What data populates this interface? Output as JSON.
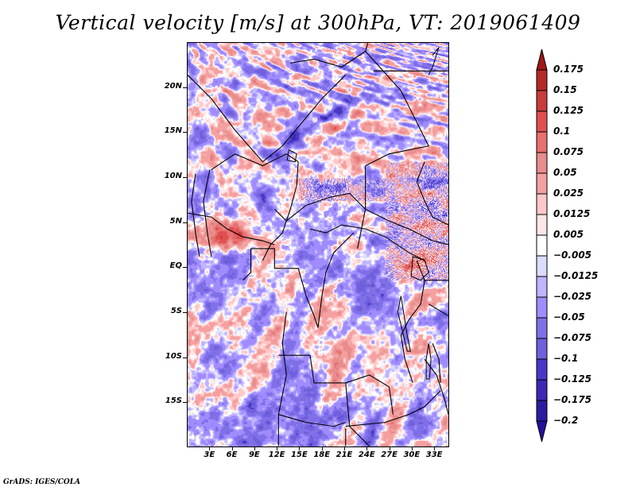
{
  "title": "Vertical velocity [m/s] at 300hPa, VT: 2019061409",
  "credit": "GrADS: IGES/COLA",
  "map": {
    "variable": "Vertical velocity",
    "units": "m/s",
    "level": "300hPa",
    "valid_time": "2019061409",
    "lon_range": [
      0,
      35
    ],
    "lat_range": [
      -20,
      25
    ],
    "y_ticks": [
      {
        "label": "20N",
        "lat": 20
      },
      {
        "label": "15N",
        "lat": 15
      },
      {
        "label": "10N",
        "lat": 10
      },
      {
        "label": "5N",
        "lat": 5
      },
      {
        "label": "EQ",
        "lat": 0
      },
      {
        "label": "5S",
        "lat": -5
      },
      {
        "label": "10S",
        "lat": -10
      },
      {
        "label": "15S",
        "lat": -15
      }
    ],
    "x_ticks": [
      {
        "label": "3E",
        "lon": 3
      },
      {
        "label": "6E",
        "lon": 6
      },
      {
        "label": "9E",
        "lon": 9
      },
      {
        "label": "12E",
        "lon": 12
      },
      {
        "label": "15E",
        "lon": 15
      },
      {
        "label": "18E",
        "lon": 18
      },
      {
        "label": "21E",
        "lon": 21
      },
      {
        "label": "24E",
        "lon": 24
      },
      {
        "label": "27E",
        "lon": 27
      },
      {
        "label": "30E",
        "lon": 30
      },
      {
        "label": "33E",
        "lon": 33
      }
    ]
  },
  "colorbar": {
    "labels": [
      "0.175",
      "0.15",
      "0.125",
      "0.1",
      "0.075",
      "0.05",
      "0.025",
      "0.0125",
      "0.005",
      "-0.005",
      "-0.0125",
      "-0.025",
      "-0.05",
      "-0.075",
      "-0.1",
      "-0.125",
      "-0.175",
      "-0.2"
    ],
    "colors": [
      "#a01818",
      "#b52828",
      "#c83c3c",
      "#e05050",
      "#e87070",
      "#e88c8c",
      "#f5a0a0",
      "#ffc8c8",
      "#ffe6e6",
      "#ffffff",
      "#dcdcff",
      "#c0b4ff",
      "#a08cff",
      "#8070e8",
      "#7060dc",
      "#4838c8",
      "#3c28b4",
      "#2c1ca0",
      "#24109c"
    ]
  }
}
